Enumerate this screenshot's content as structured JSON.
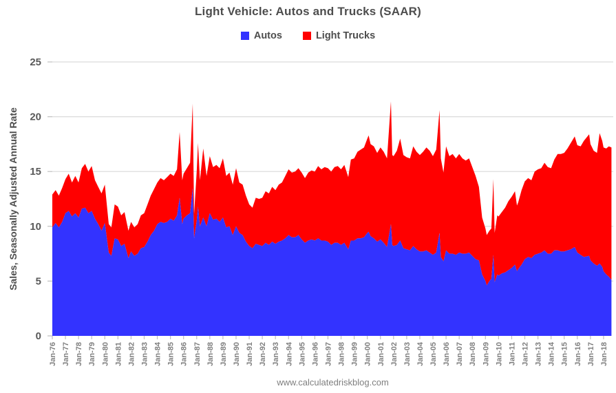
{
  "footer": {
    "url": "www.calculatedriskblog.com"
  },
  "chart_data": {
    "type": "area",
    "stacked": true,
    "title": "Light Vehicle: Autos and Trucks (SAAR)",
    "xlabel": "",
    "ylabel": "Sales, Seasonally Adjusted Annual Rate",
    "ylim": [
      0,
      25
    ],
    "yticks": [
      0,
      5,
      10,
      15,
      20,
      25
    ],
    "grid": "horizontal-only",
    "legend_position": "top-center",
    "x_unit": "decimal years (monthly data, Jan-1976 to mid-2018)",
    "xtick_labels": [
      "Jan-76",
      "Jan-77",
      "Jan-78",
      "Jan-79",
      "Jan-80",
      "Jan-81",
      "Jan-82",
      "Jan-83",
      "Jan-84",
      "Jan-85",
      "Jan-86",
      "Jan-87",
      "Jan-88",
      "Jan-89",
      "Jan-90",
      "Jan-91",
      "Jan-92",
      "Jan-93",
      "Jan-94",
      "Jan-95",
      "Jan-96",
      "Jan-97",
      "Jan-98",
      "Jan-99",
      "Jan-00",
      "Jan-01",
      "Jan-02",
      "Jan-03",
      "Jan-04",
      "Jan-05",
      "Jan-06",
      "Jan-07",
      "Jan-08",
      "Jan-09",
      "Jan-10",
      "Jan-11",
      "Jan-12",
      "Jan-13",
      "Jan-14",
      "Jan-15",
      "Jan-16",
      "Jan-17",
      "Jan-18"
    ],
    "x": [
      1976,
      1976.25,
      1976.5,
      1976.75,
      1977,
      1977.25,
      1977.5,
      1977.75,
      1978,
      1978.25,
      1978.5,
      1978.75,
      1979,
      1979.25,
      1979.5,
      1979.75,
      1980,
      1980.3,
      1980.5,
      1980.75,
      1981,
      1981.25,
      1981.5,
      1981.8,
      1982,
      1982.25,
      1982.5,
      1982.75,
      1983,
      1983.25,
      1983.5,
      1983.75,
      1984,
      1984.25,
      1984.5,
      1984.75,
      1985,
      1985.25,
      1985.5,
      1985.7,
      1985.9,
      1986,
      1986.25,
      1986.5,
      1986.7,
      1986.8,
      1987,
      1987.1,
      1987.25,
      1987.5,
      1987.75,
      1988,
      1988.25,
      1988.5,
      1988.75,
      1989,
      1989.25,
      1989.5,
      1989.75,
      1990,
      1990.25,
      1990.5,
      1990.75,
      1991,
      1991.25,
      1991.5,
      1991.75,
      1992,
      1992.25,
      1992.5,
      1992.75,
      1993,
      1993.25,
      1993.5,
      1993.75,
      1994,
      1994.25,
      1994.5,
      1994.75,
      1995,
      1995.25,
      1995.5,
      1995.75,
      1996,
      1996.25,
      1996.5,
      1996.75,
      1997,
      1997.25,
      1997.5,
      1997.75,
      1998,
      1998.25,
      1998.55,
      1998.75,
      1999,
      1999.25,
      1999.5,
      1999.75,
      2000,
      2000.1,
      2000.25,
      2000.5,
      2000.75,
      2001,
      2001.25,
      2001.5,
      2001.8,
      2001.9,
      2002,
      2002.25,
      2002.5,
      2002.75,
      2003,
      2003.25,
      2003.5,
      2003.75,
      2004,
      2004.25,
      2004.5,
      2004.75,
      2005,
      2005.25,
      2005.5,
      2005.6,
      2005.8,
      2006,
      2006.25,
      2006.5,
      2006.75,
      2007,
      2007.25,
      2007.5,
      2007.75,
      2008,
      2008.25,
      2008.5,
      2008.75,
      2009,
      2009.1,
      2009.3,
      2009.45,
      2009.6,
      2009.7,
      2009.9,
      2010,
      2010.25,
      2010.5,
      2010.75,
      2011,
      2011.25,
      2011.4,
      2011.5,
      2011.75,
      2012,
      2012.25,
      2012.5,
      2012.75,
      2013,
      2013.25,
      2013.5,
      2013.75,
      2014,
      2014.25,
      2014.5,
      2014.75,
      2015,
      2015.25,
      2015.5,
      2015.8,
      2016,
      2016.25,
      2016.5,
      2016.9,
      2017,
      2017.25,
      2017.5,
      2017.7,
      2017.9,
      2018,
      2018.2,
      2018.4,
      2018.6
    ],
    "series": [
      {
        "name": "Autos",
        "color": "#3333ff",
        "role": "bottom layer",
        "values": [
          9.9,
          10.3,
          9.9,
          10.4,
          11.2,
          11.4,
          10.9,
          11.2,
          10.8,
          11.6,
          11.7,
          11.2,
          11.4,
          10.7,
          10.2,
          9.6,
          10.3,
          7.6,
          7.3,
          8.9,
          8.8,
          8.2,
          8.4,
          7.1,
          7.7,
          7.3,
          7.5,
          8.0,
          8.1,
          8.6,
          9.2,
          9.6,
          10.2,
          10.4,
          10.3,
          10.4,
          10.7,
          10.5,
          11.0,
          12.6,
          10.2,
          10.7,
          11.0,
          11.2,
          13.5,
          8.9,
          10.5,
          11.8,
          10.0,
          10.8,
          10.0,
          11.2,
          10.6,
          10.7,
          10.4,
          10.8,
          9.9,
          10.0,
          9.2,
          10.0,
          9.4,
          9.2,
          8.6,
          8.2,
          8.0,
          8.4,
          8.3,
          8.2,
          8.5,
          8.3,
          8.6,
          8.4,
          8.6,
          8.7,
          8.9,
          9.2,
          9.0,
          9.0,
          9.2,
          8.8,
          8.5,
          8.7,
          8.8,
          8.7,
          8.9,
          8.7,
          8.7,
          8.6,
          8.3,
          8.5,
          8.5,
          8.3,
          8.5,
          7.9,
          8.7,
          8.7,
          8.9,
          8.9,
          9.0,
          9.4,
          9.5,
          9.1,
          8.9,
          8.6,
          8.8,
          8.5,
          8.1,
          10.2,
          8.3,
          8.2,
          8.3,
          8.7,
          8.0,
          7.9,
          7.8,
          8.2,
          7.9,
          7.7,
          7.7,
          7.8,
          7.6,
          7.4,
          7.6,
          9.4,
          7.2,
          6.8,
          7.8,
          7.5,
          7.5,
          7.4,
          7.6,
          7.5,
          7.5,
          7.6,
          7.3,
          7.0,
          6.9,
          5.6,
          5.0,
          4.6,
          5.0,
          5.2,
          7.4,
          4.9,
          5.6,
          5.5,
          5.7,
          5.8,
          6.0,
          6.2,
          6.5,
          5.9,
          6.1,
          6.5,
          7.0,
          7.2,
          7.1,
          7.4,
          7.5,
          7.6,
          7.8,
          7.5,
          7.5,
          7.8,
          7.8,
          7.7,
          7.7,
          7.8,
          7.9,
          8.1,
          7.6,
          7.4,
          7.2,
          7.3,
          6.9,
          6.6,
          6.4,
          6.6,
          6.3,
          5.9,
          5.6,
          5.4,
          5.1
        ]
      },
      {
        "name": "Light Trucks",
        "color": "#ff0000",
        "role": "stacked on Autos",
        "values": [
          3.0,
          3.0,
          2.9,
          3.1,
          3.1,
          3.4,
          3.1,
          3.4,
          3.2,
          3.7,
          4.0,
          3.8,
          4.1,
          3.5,
          3.4,
          3.4,
          3.5,
          2.6,
          2.6,
          3.1,
          3.0,
          2.8,
          2.9,
          2.5,
          2.7,
          2.6,
          2.7,
          3.0,
          3.1,
          3.4,
          3.6,
          3.8,
          3.8,
          4.0,
          3.9,
          4.1,
          4.1,
          4.1,
          4.2,
          6.0,
          4.0,
          4.1,
          4.3,
          4.6,
          7.7,
          2.2,
          4.5,
          5.8,
          4.2,
          6.3,
          4.6,
          5.2,
          4.8,
          4.9,
          4.9,
          5.4,
          4.7,
          4.9,
          4.6,
          5.3,
          4.6,
          4.6,
          4.2,
          3.8,
          3.7,
          4.2,
          4.2,
          4.4,
          4.7,
          4.7,
          5.0,
          4.9,
          5.2,
          5.3,
          5.7,
          6.0,
          5.9,
          6.0,
          6.1,
          6.1,
          5.9,
          6.2,
          6.3,
          6.3,
          6.6,
          6.5,
          6.7,
          6.7,
          6.7,
          6.9,
          7.0,
          6.9,
          7.1,
          6.6,
          7.4,
          7.5,
          7.9,
          8.1,
          8.2,
          8.6,
          8.8,
          8.4,
          8.4,
          8.1,
          8.4,
          8.3,
          8.1,
          11.2,
          8.2,
          8.2,
          8.6,
          9.3,
          8.5,
          8.4,
          8.4,
          9.1,
          8.9,
          8.8,
          9.1,
          9.4,
          9.3,
          9.0,
          9.4,
          11.2,
          9.0,
          8.1,
          9.5,
          8.9,
          9.1,
          8.8,
          9.0,
          8.7,
          8.5,
          8.6,
          8.1,
          7.6,
          6.7,
          5.2,
          4.8,
          4.6,
          4.6,
          4.6,
          6.9,
          4.5,
          5.4,
          5.4,
          5.6,
          5.9,
          6.3,
          6.5,
          6.7,
          6.0,
          6.1,
          6.8,
          7.1,
          7.2,
          7.1,
          7.6,
          7.7,
          7.7,
          8.0,
          7.9,
          7.8,
          8.3,
          8.8,
          8.9,
          9.0,
          9.3,
          9.7,
          10.1,
          9.8,
          9.9,
          10.6,
          11.1,
          10.6,
          10.3,
          10.3,
          11.9,
          11.5,
          11.3,
          11.5,
          11.9,
          12.1
        ]
      }
    ],
    "annotations": [],
    "colors": {
      "gridline": "#d9d9d9",
      "tick": "#bfbfbf",
      "axis_text": "#595959",
      "xtick_text": "#7f7f7f",
      "title_text": "#4d4d4d"
    }
  }
}
